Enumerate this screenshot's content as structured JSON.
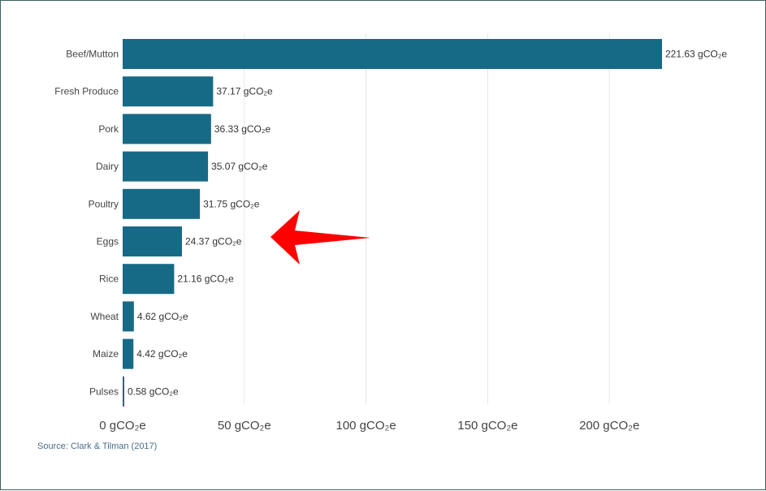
{
  "chart_data": {
    "type": "bar",
    "orientation": "horizontal",
    "categories": [
      "Beef/Mutton",
      "Fresh Produce",
      "Pork",
      "Dairy",
      "Poultry",
      "Eggs",
      "Rice",
      "Wheat",
      "Maize",
      "Pulses"
    ],
    "values": [
      221.63,
      37.17,
      36.33,
      35.07,
      31.75,
      24.37,
      21.16,
      4.62,
      4.42,
      0.58
    ],
    "value_labels": [
      "221.63 gCO₂e",
      "37.17 gCO₂e",
      "36.33 gCO₂e",
      "35.07 gCO₂e",
      "31.75 gCO₂e",
      "24.37 gCO₂e",
      "21.16 gCO₂e",
      "4.62 gCO₂e",
      "4.42 gCO₂e",
      "0.58 gCO₂e"
    ],
    "x_ticks": [
      0,
      50,
      100,
      150,
      200
    ],
    "x_tick_labels": [
      "0 gCO₂e",
      "50 gCO₂e",
      "100 gCO₂e",
      "150 gCO₂e",
      "200 gCO₂e"
    ],
    "xlim": [
      0,
      221.63
    ],
    "grid": true,
    "bar_color": "#176a86",
    "annotation": {
      "type": "arrow",
      "target_category": "Eggs",
      "color": "#ff0000"
    },
    "source": "Source: Clark & Tilman (2017)"
  }
}
